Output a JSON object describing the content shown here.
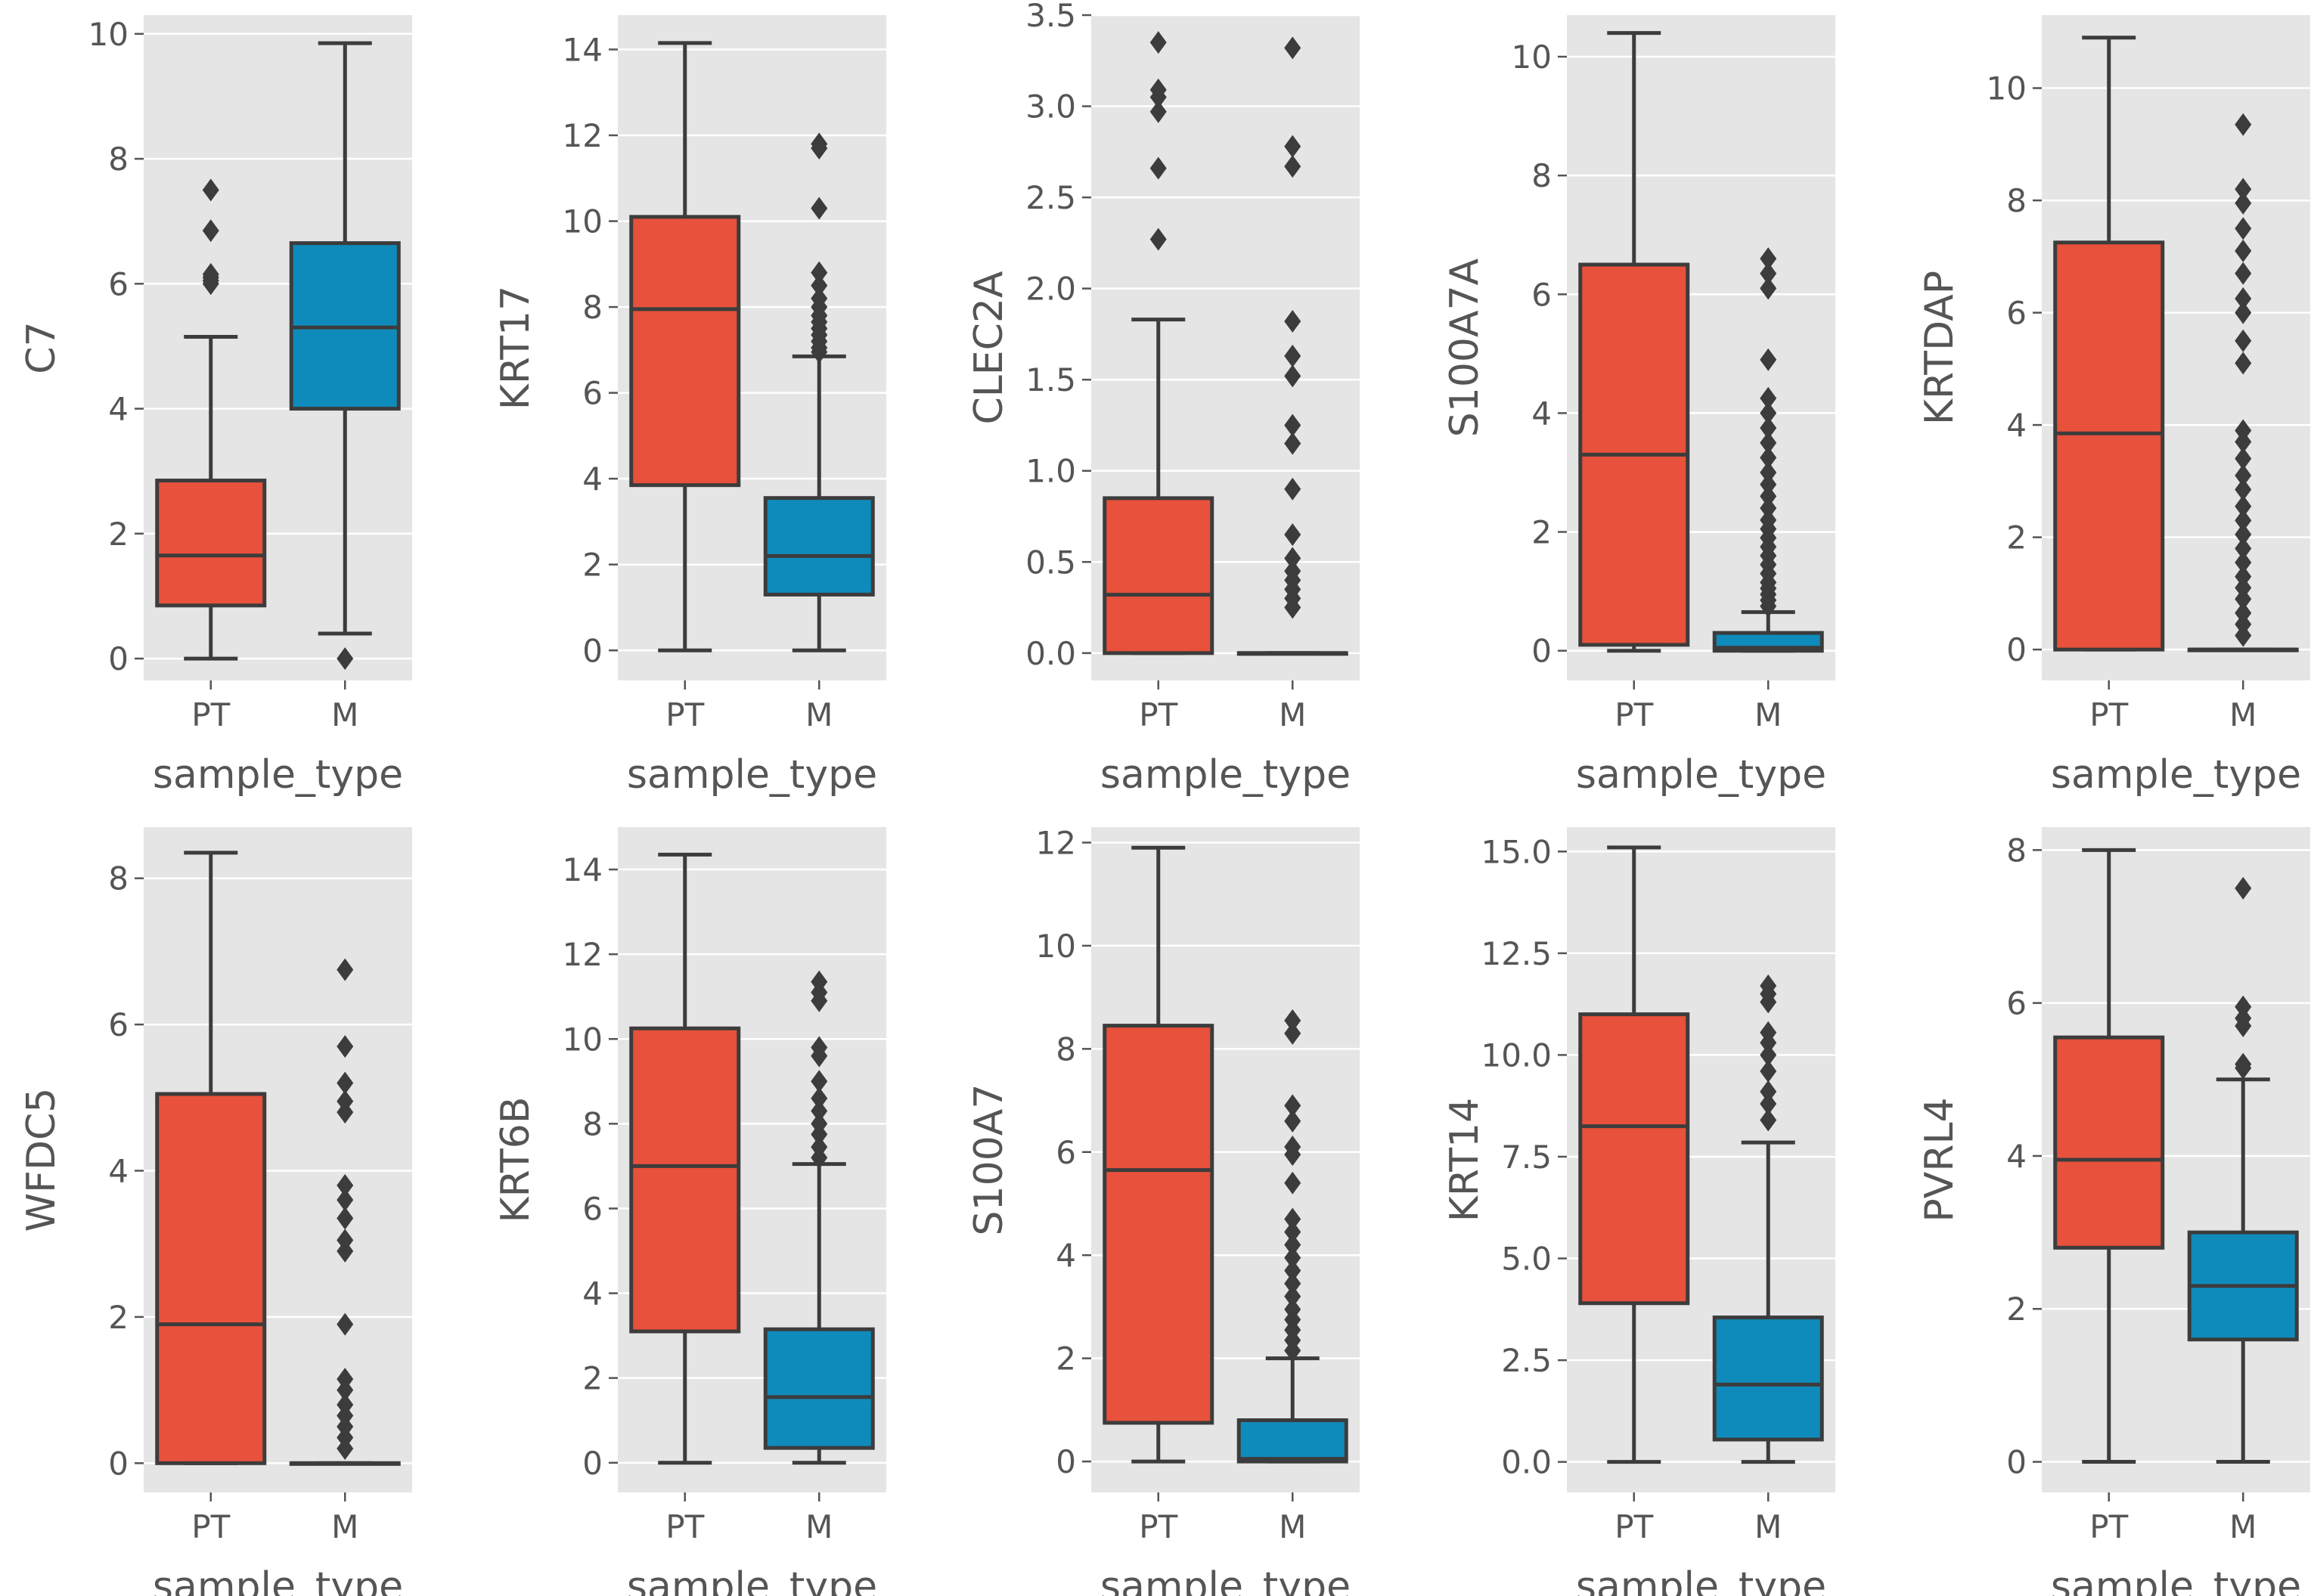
{
  "figure": {
    "xlabel": "sample_type"
  },
  "colors": {
    "PT": "#e8513b",
    "M": "#0f8bbb",
    "background": "#e5e5e5"
  },
  "chart_data": [
    {
      "type": "box",
      "ylabel": "C7",
      "xlabel": "sample_type",
      "categories": [
        "PT",
        "M"
      ],
      "ylim": [
        -0.35,
        10.3
      ],
      "yticks": [
        0,
        2,
        4,
        6,
        8,
        10
      ],
      "ytick_labels": [
        "0",
        "2",
        "4",
        "6",
        "8",
        "10"
      ],
      "boxes": [
        {
          "name": "PT",
          "min": 0,
          "q1": 0.85,
          "median": 1.65,
          "q3": 2.85,
          "max": 5.15,
          "outliers": [
            6.0,
            6.05,
            6.1,
            6.15,
            6.85,
            7.5
          ]
        },
        {
          "name": "M",
          "min": 0.4,
          "q1": 4.0,
          "median": 5.3,
          "q3": 6.65,
          "max": 9.85,
          "outliers": [
            0.0
          ]
        }
      ]
    },
    {
      "type": "box",
      "ylabel": "KRT17",
      "xlabel": "sample_type",
      "categories": [
        "PT",
        "M"
      ],
      "ylim": [
        -0.7,
        14.8
      ],
      "yticks": [
        0,
        2,
        4,
        6,
        8,
        10,
        12,
        14
      ],
      "ytick_labels": [
        "0",
        "2",
        "4",
        "6",
        "8",
        "10",
        "12",
        "14"
      ],
      "boxes": [
        {
          "name": "PT",
          "min": 0,
          "q1": 3.85,
          "median": 7.95,
          "q3": 10.1,
          "max": 14.15,
          "outliers": []
        },
        {
          "name": "M",
          "min": 0,
          "q1": 1.3,
          "median": 2.2,
          "q3": 3.55,
          "max": 6.85,
          "outliers": [
            6.95,
            7.05,
            7.2,
            7.35,
            7.5,
            7.65,
            7.8,
            8.0,
            8.2,
            8.5,
            8.8,
            10.3,
            11.7,
            11.8
          ]
        }
      ]
    },
    {
      "type": "box",
      "ylabel": "CLEC2A",
      "xlabel": "sample_type",
      "categories": [
        "PT",
        "M"
      ],
      "ylim": [
        -0.15,
        3.5
      ],
      "yticks": [
        0,
        0.5,
        1.0,
        1.5,
        2.0,
        2.5,
        3.0,
        3.5
      ],
      "ytick_labels": [
        "0.0",
        "0.5",
        "1.0",
        "1.5",
        "2.0",
        "2.5",
        "3.0",
        "3.5"
      ],
      "boxes": [
        {
          "name": "PT",
          "min": 0,
          "q1": 0.0,
          "median": 0.32,
          "q3": 0.85,
          "max": 1.83,
          "outliers": [
            2.27,
            2.66,
            2.97,
            3.05,
            3.09,
            3.35
          ]
        },
        {
          "name": "M",
          "min": 0,
          "q1": 0.0,
          "median": 0.0,
          "q3": 0.0,
          "max": 0.0,
          "outliers": [
            0.25,
            0.3,
            0.35,
            0.4,
            0.45,
            0.52,
            0.65,
            0.9,
            1.15,
            1.25,
            1.52,
            1.63,
            1.82,
            2.67,
            2.78,
            3.32
          ]
        }
      ]
    },
    {
      "type": "box",
      "ylabel": "S100A7A",
      "xlabel": "sample_type",
      "categories": [
        "PT",
        "M"
      ],
      "ylim": [
        -0.5,
        10.7
      ],
      "yticks": [
        0,
        2,
        4,
        6,
        8,
        10
      ],
      "ytick_labels": [
        "0",
        "2",
        "4",
        "6",
        "8",
        "10"
      ],
      "boxes": [
        {
          "name": "PT",
          "min": 0,
          "q1": 0.1,
          "median": 3.3,
          "q3": 6.5,
          "max": 10.4,
          "outliers": []
        },
        {
          "name": "M",
          "min": 0,
          "q1": 0.0,
          "median": 0.05,
          "q3": 0.3,
          "max": 0.65,
          "outliers": [
            0.75,
            0.85,
            0.95,
            1.05,
            1.15,
            1.3,
            1.45,
            1.6,
            1.75,
            1.9,
            2.05,
            2.2,
            2.4,
            2.6,
            2.8,
            3.0,
            3.25,
            3.5,
            3.75,
            4.0,
            4.25,
            4.9,
            6.1,
            6.35,
            6.6
          ]
        }
      ]
    },
    {
      "type": "box",
      "ylabel": "KRTDAP",
      "xlabel": "sample_type",
      "categories": [
        "PT",
        "M"
      ],
      "ylim": [
        -0.55,
        11.3
      ],
      "yticks": [
        0,
        2,
        4,
        6,
        8,
        10
      ],
      "ytick_labels": [
        "0",
        "2",
        "4",
        "6",
        "8",
        "10"
      ],
      "boxes": [
        {
          "name": "PT",
          "min": 0,
          "q1": 0.0,
          "median": 3.85,
          "q3": 7.25,
          "max": 10.9,
          "outliers": []
        },
        {
          "name": "M",
          "min": 0,
          "q1": 0.0,
          "median": 0.0,
          "q3": 0.0,
          "max": 0.0,
          "outliers": [
            0.25,
            0.45,
            0.65,
            0.9,
            1.1,
            1.3,
            1.55,
            1.8,
            2.05,
            2.3,
            2.55,
            2.85,
            3.1,
            3.4,
            3.7,
            3.9,
            5.1,
            5.5,
            6.0,
            6.25,
            6.7,
            7.1,
            7.5,
            7.95,
            8.2,
            9.35
          ]
        }
      ]
    },
    {
      "type": "box",
      "ylabel": "WFDC5",
      "xlabel": "sample_type",
      "categories": [
        "PT",
        "M"
      ],
      "ylim": [
        -0.4,
        8.7
      ],
      "yticks": [
        0,
        2,
        4,
        6,
        8
      ],
      "ytick_labels": [
        "0",
        "2",
        "4",
        "6",
        "8"
      ],
      "boxes": [
        {
          "name": "PT",
          "min": 0,
          "q1": 0.0,
          "median": 1.9,
          "q3": 5.05,
          "max": 8.35,
          "outliers": []
        },
        {
          "name": "M",
          "min": 0,
          "q1": 0.0,
          "median": 0.0,
          "q3": 0.0,
          "max": 0.0,
          "outliers": [
            0.2,
            0.35,
            0.5,
            0.65,
            0.8,
            1.0,
            1.15,
            1.9,
            2.9,
            3.05,
            3.35,
            3.6,
            3.8,
            4.8,
            4.95,
            5.2,
            5.7,
            6.75
          ]
        }
      ]
    },
    {
      "type": "box",
      "ylabel": "KRT6B",
      "xlabel": "sample_type",
      "categories": [
        "PT",
        "M"
      ],
      "ylim": [
        -0.7,
        15.0
      ],
      "yticks": [
        0,
        2,
        4,
        6,
        8,
        10,
        12,
        14
      ],
      "ytick_labels": [
        "0",
        "2",
        "4",
        "6",
        "8",
        "10",
        "12",
        "14"
      ],
      "boxes": [
        {
          "name": "PT",
          "min": 0,
          "q1": 3.1,
          "median": 7.0,
          "q3": 10.25,
          "max": 14.35,
          "outliers": []
        },
        {
          "name": "M",
          "min": 0,
          "q1": 0.35,
          "median": 1.55,
          "q3": 3.15,
          "max": 7.05,
          "outliers": [
            7.2,
            7.45,
            7.75,
            8.0,
            8.3,
            8.6,
            9.0,
            9.6,
            9.8,
            10.9,
            11.1,
            11.35
          ]
        }
      ]
    },
    {
      "type": "box",
      "ylabel": "S100A7",
      "xlabel": "sample_type",
      "categories": [
        "PT",
        "M"
      ],
      "ylim": [
        -0.6,
        12.3
      ],
      "yticks": [
        0,
        2,
        4,
        6,
        8,
        10,
        12
      ],
      "ytick_labels": [
        "0",
        "2",
        "4",
        "6",
        "8",
        "10",
        "12"
      ],
      "boxes": [
        {
          "name": "PT",
          "min": 0,
          "q1": 0.75,
          "median": 5.65,
          "q3": 8.45,
          "max": 11.9,
          "outliers": []
        },
        {
          "name": "M",
          "min": 0,
          "q1": 0.0,
          "median": 0.05,
          "q3": 0.8,
          "max": 2.0,
          "outliers": [
            2.15,
            2.35,
            2.55,
            2.75,
            2.95,
            3.2,
            3.45,
            3.7,
            3.95,
            4.2,
            4.45,
            4.7,
            5.4,
            5.95,
            6.1,
            6.6,
            6.9,
            8.3,
            8.55
          ]
        }
      ]
    },
    {
      "type": "box",
      "ylabel": "KRT14",
      "xlabel": "sample_type",
      "categories": [
        "PT",
        "M"
      ],
      "ylim": [
        -0.75,
        15.6
      ],
      "yticks": [
        0,
        2.5,
        5.0,
        7.5,
        10.0,
        12.5,
        15.0
      ],
      "ytick_labels": [
        "0.0",
        "2.5",
        "5.0",
        "7.5",
        "10.0",
        "12.5",
        "15.0"
      ],
      "boxes": [
        {
          "name": "PT",
          "min": 0,
          "q1": 3.9,
          "median": 8.25,
          "q3": 11.0,
          "max": 15.1,
          "outliers": []
        },
        {
          "name": "M",
          "min": 0,
          "q1": 0.55,
          "median": 1.9,
          "q3": 3.55,
          "max": 7.85,
          "outliers": [
            8.4,
            8.8,
            9.1,
            9.6,
            10.0,
            10.3,
            10.55,
            11.3,
            11.5,
            11.7
          ]
        }
      ]
    },
    {
      "type": "box",
      "ylabel": "PVRL4",
      "xlabel": "sample_type",
      "categories": [
        "PT",
        "M"
      ],
      "ylim": [
        -0.4,
        8.3
      ],
      "yticks": [
        0,
        2,
        4,
        6,
        8
      ],
      "ytick_labels": [
        "0",
        "2",
        "4",
        "6",
        "8"
      ],
      "boxes": [
        {
          "name": "PT",
          "min": 0,
          "q1": 2.8,
          "median": 3.95,
          "q3": 5.55,
          "max": 8.0,
          "outliers": []
        },
        {
          "name": "M",
          "min": 0,
          "q1": 1.6,
          "median": 2.3,
          "q3": 3.0,
          "max": 5.0,
          "outliers": [
            5.15,
            5.2,
            5.7,
            5.8,
            5.95,
            7.5
          ]
        }
      ]
    }
  ]
}
